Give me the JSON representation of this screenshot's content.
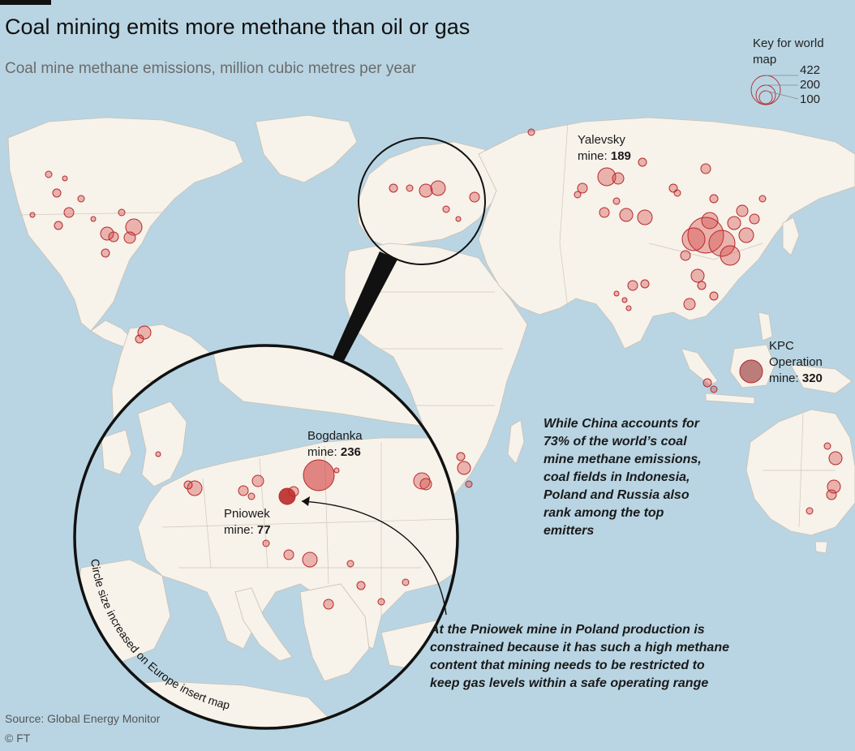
{
  "header": {
    "title": "Coal mining emits more methane than oil or gas",
    "subtitle": "Coal mine methane emissions, million cubic metres per year"
  },
  "key": {
    "title": "Key for world map",
    "values": [
      "422",
      "200",
      "100"
    ]
  },
  "labels": {
    "yalevsky_name": "Yalevsky",
    "yalevsky_prefix": "mine: ",
    "yalevsky_value": "189",
    "kpc_name_1": "KPC",
    "kpc_name_2": "Operation",
    "kpc_prefix": "mine: ",
    "kpc_value": "320",
    "bogdanka_name": "Bogdanka",
    "bogdanka_prefix": "mine: ",
    "bogdanka_value": "236",
    "pniowek_name": "Pniowek",
    "pniowek_prefix": "mine: ",
    "pniowek_value": "77"
  },
  "notes": {
    "china": [
      "While China accounts for",
      "73% of the world’s coal",
      "mine methane emissions,",
      "coal fields in Indonesia,",
      "Poland and Russia also",
      "rank among the top",
      "emitters"
    ],
    "pniowek": [
      "At the Pniowek mine in Poland production is",
      "constrained because it has such a high methane",
      "content that mining needs to be restricted to",
      "keep gas levels within a safe operating range"
    ]
  },
  "insert_caption": "Circle size increased on Europe insert map",
  "footer": {
    "source": "Source: Global Energy Monitor",
    "copyright": "© FT"
  },
  "colors": {
    "ocean": "#b9d5e3",
    "land": "#f7f2ea",
    "bubble_fill": "#d23c3c",
    "bubble_stroke": "#b52a2a"
  }
}
